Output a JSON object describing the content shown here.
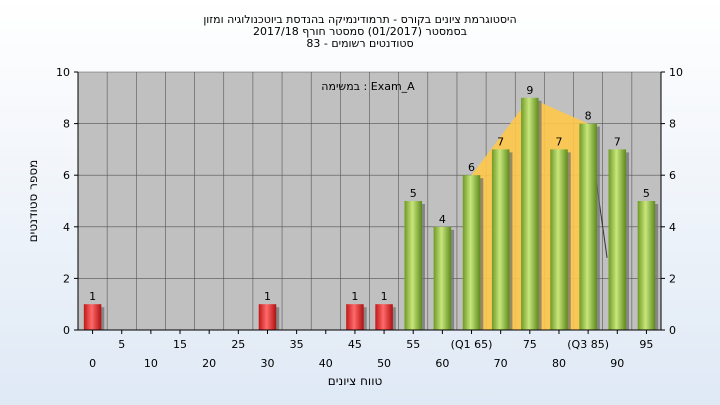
{
  "chart_data": {
    "type": "bar",
    "title_lines": [
      "היסטוגרמת ציונים בקורס - תרמודינמיקה בהנדסת ביוטכנולוגיה ומזון",
      "בסמסטר  (01/2017)  סמסטר חורף 2017/18",
      "סטודנטים רשומים - 83"
    ],
    "ylabel": "מספר סטודנטים",
    "xlabel": "טווח ציונים",
    "annotation": "במשימה : Exam_A",
    "ylim": [
      0,
      10
    ],
    "yticks": [
      0,
      2,
      4,
      6,
      8,
      10
    ],
    "categories": [
      "0",
      "5",
      "10",
      "15",
      "20",
      "25",
      "30",
      "35",
      "40",
      "45",
      "50",
      "55",
      "60",
      "65",
      "70",
      "75",
      "80",
      "85",
      "90",
      "95"
    ],
    "category_labels_low": [
      "0",
      "",
      "10",
      "",
      "20",
      "",
      "30",
      "",
      "40",
      "",
      "50",
      "",
      "60",
      "",
      "70",
      "",
      "80",
      "",
      "90",
      ""
    ],
    "category_labels_high": [
      "",
      "5",
      "",
      "15",
      "",
      "25",
      "",
      "35",
      "",
      "45",
      "",
      "55",
      "",
      "(Q1 65)",
      "",
      "75",
      "",
      "(Q3 85)",
      "",
      "95"
    ],
    "values": [
      1,
      0,
      0,
      0,
      0,
      0,
      1,
      0,
      0,
      1,
      1,
      5,
      4,
      6,
      7,
      9,
      7,
      8,
      7,
      5
    ],
    "data_labels": [
      "1",
      "",
      "",
      "",
      "",
      "",
      "1",
      "",
      "",
      "1",
      "1",
      "5",
      "4",
      "6",
      "7",
      "9",
      "7",
      "8",
      "7",
      "5"
    ],
    "pass_threshold_index": 11,
    "quartile_band": [
      [
        13,
        6
      ],
      [
        15,
        9
      ],
      [
        17,
        8
      ]
    ],
    "colors": {
      "fail": "#e53333",
      "pass": "#8cbc3c",
      "band": "#ffc84a",
      "plot_bg": "#c0c0c0"
    }
  }
}
